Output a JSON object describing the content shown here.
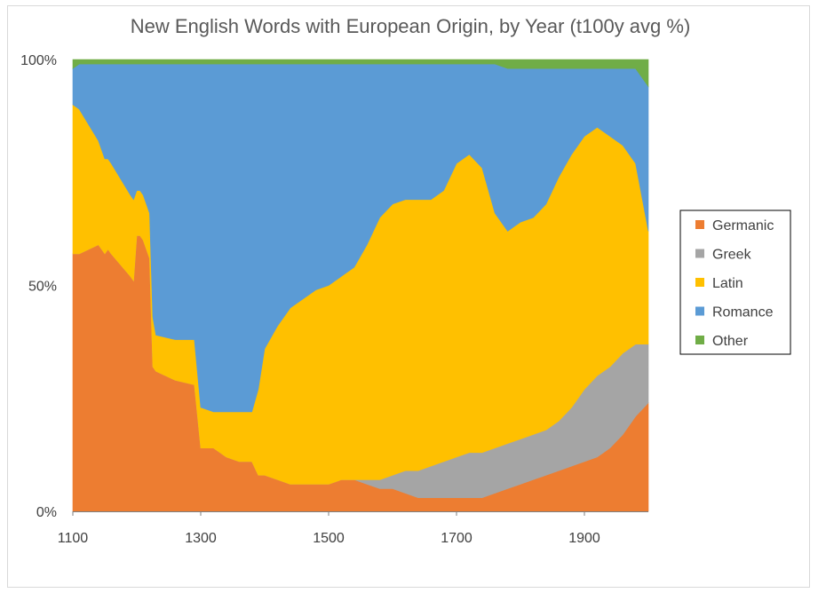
{
  "chart_data": {
    "type": "area",
    "stacked": "100%",
    "title": "New English Words with European Origin, by Year (t100y avg %)",
    "xlabel": "",
    "ylabel": "",
    "x_ticks": [
      "1100",
      "1300",
      "1500",
      "1700",
      "1900"
    ],
    "x_tick_values": [
      1100,
      1300,
      1500,
      1700,
      1900
    ],
    "y_ticks": [
      "0%",
      "50%",
      "100%"
    ],
    "y_tick_values": [
      0,
      50,
      100
    ],
    "xlim": [
      1100,
      2000
    ],
    "ylim": [
      0,
      100
    ],
    "grid": false,
    "legend_position": "right",
    "x": [
      1100,
      1110,
      1140,
      1150,
      1155,
      1160,
      1190,
      1195,
      1200,
      1205,
      1210,
      1220,
      1225,
      1230,
      1260,
      1290,
      1300,
      1320,
      1340,
      1360,
      1380,
      1390,
      1400,
      1420,
      1440,
      1460,
      1480,
      1500,
      1520,
      1540,
      1560,
      1580,
      1600,
      1620,
      1640,
      1660,
      1680,
      1700,
      1720,
      1740,
      1760,
      1780,
      1800,
      1820,
      1840,
      1860,
      1880,
      1900,
      1920,
      1940,
      1960,
      1980,
      2000
    ],
    "series": [
      {
        "name": "Germanic",
        "color": "#ED7D31",
        "values": [
          57,
          57,
          59,
          57,
          58,
          57,
          52,
          51,
          61,
          61,
          60,
          56,
          32,
          31,
          29,
          28,
          14,
          14,
          12,
          11,
          11,
          8,
          8,
          7,
          6,
          6,
          6,
          6,
          7,
          7,
          6,
          5,
          5,
          4,
          3,
          3,
          3,
          3,
          3,
          3,
          4,
          5,
          6,
          7,
          8,
          9,
          10,
          11,
          12,
          14,
          17,
          21,
          24
        ]
      },
      {
        "name": "Greek",
        "color": "#A5A5A5",
        "values": [
          0,
          0,
          0,
          0,
          0,
          0,
          0,
          0,
          0,
          0,
          0,
          0,
          0,
          0,
          0,
          0,
          0,
          0,
          0,
          0,
          0,
          0,
          0,
          0,
          0,
          0,
          0,
          0,
          0,
          0,
          1,
          2,
          3,
          5,
          6,
          7,
          8,
          9,
          10,
          10,
          10,
          10,
          10,
          10,
          10,
          11,
          13,
          16,
          18,
          18,
          18,
          16,
          13
        ]
      },
      {
        "name": "Latin",
        "color": "#FFC000",
        "values": [
          33,
          32,
          23,
          21,
          20,
          20,
          18,
          18,
          10,
          10,
          10,
          10,
          11,
          8,
          9,
          10,
          9,
          8,
          10,
          11,
          11,
          19,
          28,
          34,
          39,
          41,
          43,
          44,
          45,
          47,
          52,
          58,
          60,
          60,
          60,
          59,
          60,
          65,
          66,
          63,
          52,
          47,
          48,
          48,
          50,
          54,
          56,
          56,
          55,
          51,
          46,
          40,
          25
        ]
      },
      {
        "name": "Romance",
        "color": "#5B9BD5",
        "values": [
          8,
          10,
          17,
          21,
          21,
          22,
          29,
          30,
          28,
          28,
          29,
          33,
          56,
          60,
          61,
          61,
          76,
          77,
          77,
          77,
          77,
          72,
          63,
          58,
          54,
          52,
          50,
          49,
          47,
          45,
          40,
          34,
          31,
          30,
          30,
          30,
          28,
          22,
          20,
          23,
          33,
          36,
          34,
          33,
          30,
          24,
          19,
          15,
          13,
          15,
          17,
          21,
          32
        ]
      },
      {
        "name": "Other",
        "color": "#70AD47",
        "values": [
          2,
          1,
          1,
          1,
          1,
          1,
          1,
          1,
          1,
          1,
          1,
          1,
          1,
          1,
          1,
          1,
          1,
          1,
          1,
          1,
          1,
          1,
          1,
          1,
          1,
          1,
          1,
          1,
          1,
          1,
          1,
          1,
          1,
          1,
          1,
          1,
          1,
          1,
          1,
          1,
          1,
          2,
          2,
          2,
          2,
          2,
          2,
          2,
          2,
          2,
          2,
          2,
          6
        ]
      }
    ]
  }
}
